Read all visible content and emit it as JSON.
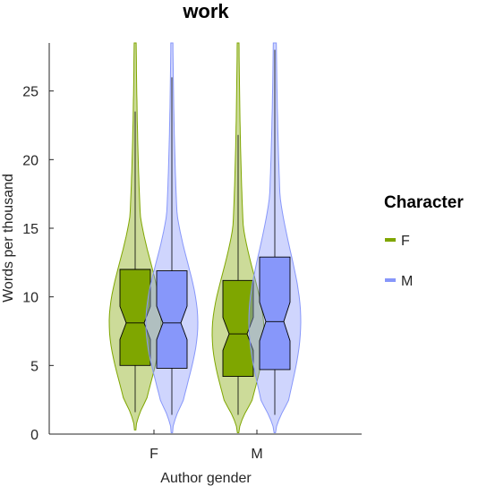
{
  "chart_data": {
    "type": "violin",
    "title": "work",
    "xlabel": "Author gender",
    "ylabel": "Words per thousand",
    "categories": [
      "F",
      "M"
    ],
    "ylim": [
      0,
      28.5
    ],
    "yticks": [
      0,
      5,
      10,
      15,
      20,
      25
    ],
    "legend": {
      "title": "Character",
      "position": "right",
      "entries": [
        "F",
        "M"
      ]
    },
    "colors": {
      "F": "#7fa600",
      "M": "#8797fa"
    },
    "series": [
      {
        "name": "F",
        "boxes": [
          {
            "category": "F",
            "whisker_low": 1.6,
            "q1": 5.0,
            "median": 8.1,
            "q3": 12.0,
            "whisker_high": 23.5,
            "violin_max": 28.5
          },
          {
            "category": "M",
            "whisker_low": 1.4,
            "q1": 4.2,
            "median": 7.3,
            "q3": 11.2,
            "whisker_high": 21.8,
            "violin_max": 28.5
          }
        ]
      },
      {
        "name": "M",
        "boxes": [
          {
            "category": "F",
            "whisker_low": 1.4,
            "q1": 4.8,
            "median": 8.1,
            "q3": 11.9,
            "whisker_high": 26.0,
            "violin_max": 28.5
          },
          {
            "category": "M",
            "whisker_low": 1.4,
            "q1": 4.7,
            "median": 8.2,
            "q3": 12.9,
            "whisker_high": 28.0,
            "violin_max": 28.5
          }
        ]
      }
    ]
  }
}
